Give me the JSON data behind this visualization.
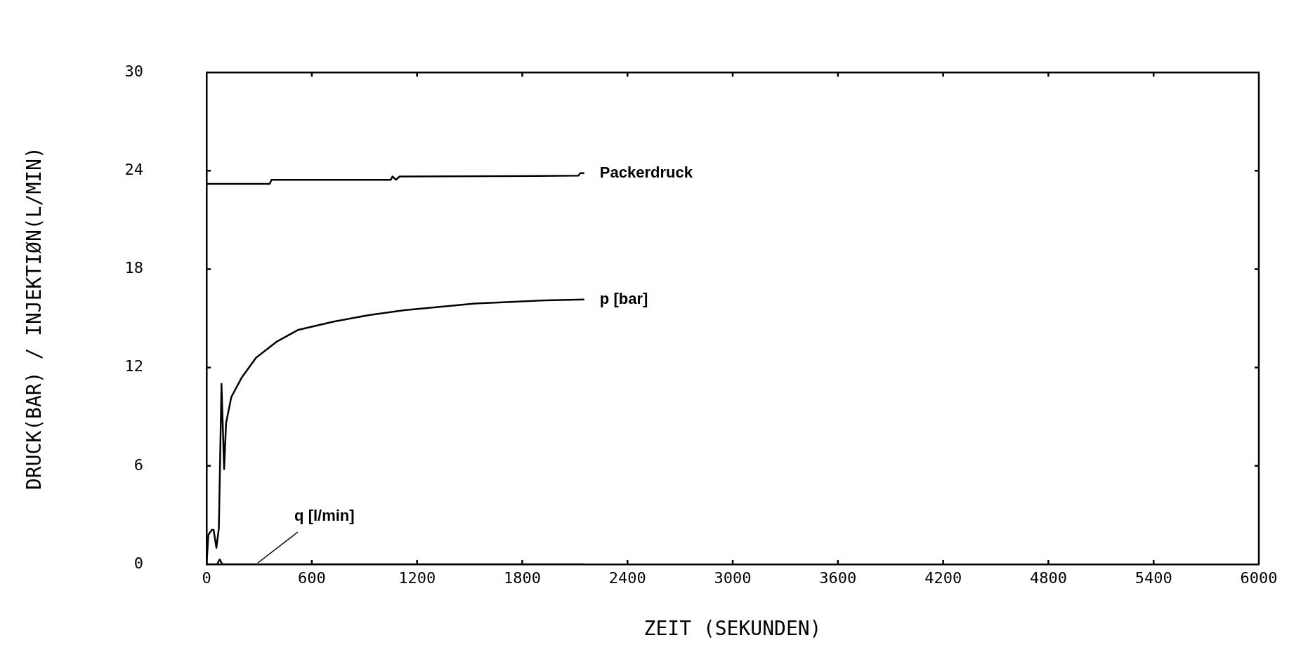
{
  "chart_data": {
    "type": "line",
    "xlabel": "ZEIT (SEKUNDEN)",
    "ylabel": "DRUCK(BAR) / INJEKTIØN(L/MIN)",
    "xlim": [
      0,
      6000
    ],
    "xticks": [
      0,
      600,
      1200,
      1800,
      2400,
      3000,
      3600,
      4200,
      4800,
      5400,
      6000
    ],
    "ylim": [
      0,
      30
    ],
    "yticks": [
      0,
      6,
      12,
      18,
      24,
      30
    ],
    "grid": false,
    "legend": false,
    "marker": "none",
    "line_style": "solid",
    "series": [
      {
        "name": "Packerdruck",
        "color": "#000000",
        "x": [
          0,
          360,
          370,
          1050,
          1060,
          1080,
          1100,
          2120,
          2130,
          2154
        ],
        "values": [
          23.2,
          23.2,
          23.45,
          23.45,
          23.65,
          23.45,
          23.65,
          23.7,
          23.85,
          23.85
        ]
      },
      {
        "name": "p [bar]",
        "color": "#000000",
        "x": [
          0,
          10,
          30,
          40,
          56,
          70,
          85,
          100,
          111,
          141,
          201,
          282,
          403,
          523,
          725,
          926,
          1127,
          1329,
          1530,
          1731,
          1932,
          2154
        ],
        "values": [
          0,
          1.8,
          2.1,
          2.1,
          1.0,
          2.2,
          11.0,
          5.8,
          8.6,
          10.2,
          11.4,
          12.6,
          13.6,
          14.3,
          14.8,
          15.2,
          15.5,
          15.7,
          15.9,
          16.0,
          16.1,
          16.15
        ]
      },
      {
        "name": "q [l/min]",
        "color": "#000000",
        "x": [
          0,
          60,
          75,
          90,
          2154
        ],
        "values": [
          0,
          0,
          0.3,
          0,
          0
        ]
      }
    ]
  }
}
